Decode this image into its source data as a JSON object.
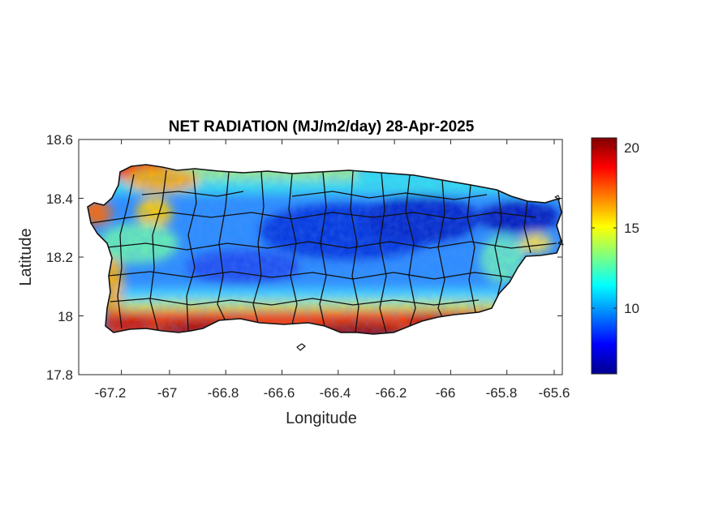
{
  "chart_data": {
    "type": "heatmap",
    "title": "NET RADIATION (MJ/m2/day) 28-Apr-2025",
    "xlabel": "Longitude",
    "ylabel": "Latitude",
    "xlim": [
      -67.3,
      -65.58
    ],
    "ylim": [
      17.8,
      18.6
    ],
    "x_ticks": [
      {
        "value": -67.2,
        "label": "-67.2"
      },
      {
        "value": -67.0,
        "label": "-67"
      },
      {
        "value": -66.8,
        "label": "-66.8"
      },
      {
        "value": -66.6,
        "label": "-66.6"
      },
      {
        "value": -66.4,
        "label": "-66.4"
      },
      {
        "value": -66.2,
        "label": "-66.2"
      },
      {
        "value": -66.0,
        "label": "-66"
      },
      {
        "value": -65.8,
        "label": "-65.8"
      },
      {
        "value": -65.6,
        "label": "-65.6"
      }
    ],
    "y_ticks": [
      {
        "value": 17.8,
        "label": "17.8"
      },
      {
        "value": 18.0,
        "label": "18"
      },
      {
        "value": 18.2,
        "label": "18.2"
      },
      {
        "value": 18.4,
        "label": "18.4"
      },
      {
        "value": 18.6,
        "label": "18.6"
      }
    ],
    "colorbar": {
      "colormap": "jet",
      "range": [
        5.8,
        20.6
      ],
      "ticks": [
        {
          "value": 10,
          "label": "10"
        },
        {
          "value": 15,
          "label": "15"
        },
        {
          "value": 20,
          "label": "20"
        }
      ]
    },
    "grid": false,
    "region": "Puerto Rico",
    "field_description": "Values high (17-20) along the south coast and far west/northwest coast, moderate (12-15) along north coast, low (7-10) across central interior and east"
  }
}
